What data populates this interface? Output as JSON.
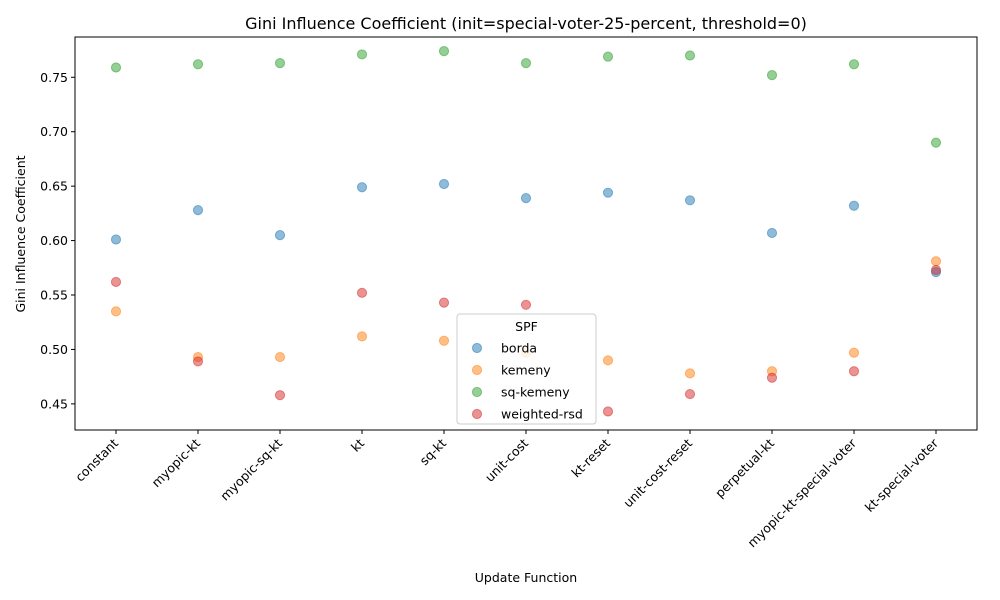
{
  "chart_data": {
    "type": "scatter",
    "title": "Gini Influence Coefficient (init=special-voter-25-percent, threshold=0)",
    "xlabel": "Update Function",
    "ylabel": "Gini Influence Coefficient",
    "categories": [
      "constant",
      "myopic-kt",
      "myopic-sq-kt",
      "kt",
      "sq-kt",
      "unit-cost",
      "kt-reset",
      "unit-cost-reset",
      "perpetual-kt",
      "myopic-kt-special-voter",
      "kt-special-voter"
    ],
    "ylim": [
      0.426,
      0.787
    ],
    "yticks": [
      0.45,
      0.5,
      0.55,
      0.6,
      0.65,
      0.7,
      0.75
    ],
    "ytick_labels": [
      "0.45",
      "0.50",
      "0.55",
      "0.60",
      "0.65",
      "0.70",
      "0.75"
    ],
    "grid": false,
    "legend": {
      "title": "SPF",
      "placement": "lower-center"
    },
    "series": [
      {
        "name": "borda",
        "color": "#1f77b4",
        "values": [
          0.601,
          0.628,
          0.605,
          0.649,
          0.652,
          0.639,
          0.644,
          0.637,
          0.607,
          0.632,
          0.571
        ]
      },
      {
        "name": "kemeny",
        "color": "#ff7f0e",
        "values": [
          0.535,
          0.493,
          0.493,
          0.512,
          0.508,
          0.497,
          0.49,
          0.478,
          0.48,
          0.497,
          0.581
        ]
      },
      {
        "name": "sq-kemeny",
        "color": "#2ca02c",
        "values": [
          0.759,
          0.762,
          0.763,
          0.771,
          0.774,
          0.763,
          0.769,
          0.77,
          0.752,
          0.762,
          0.69
        ]
      },
      {
        "name": "weighted-rsd",
        "color": "#d62728",
        "values": [
          0.562,
          0.489,
          0.458,
          0.552,
          0.543,
          0.541,
          0.443,
          0.459,
          0.474,
          0.48,
          0.573
        ]
      }
    ]
  }
}
